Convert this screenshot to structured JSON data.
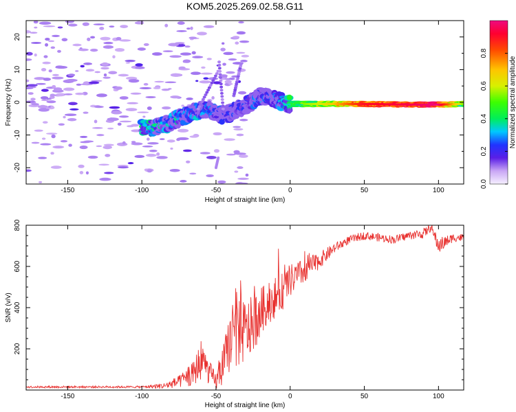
{
  "title": "KOM5.2025.269.02.58.G11",
  "chart_data": [
    {
      "type": "heatmap",
      "xlabel": "Height of straight line (km)",
      "ylabel": "Frequency (Hz)",
      "xlim": [
        -178,
        117
      ],
      "ylim": [
        -25,
        25
      ],
      "xticks": [
        -150,
        -100,
        -50,
        0,
        50,
        100
      ],
      "yticks": [
        -20,
        -10,
        0,
        10,
        20
      ],
      "colorbar": {
        "label": "Normalized spectral amplitude",
        "range": [
          0,
          1
        ],
        "ticks": [
          0.0,
          0.2,
          0.4,
          0.6,
          0.8
        ],
        "tick_labels": [
          "0.0",
          "0.2",
          "0.4",
          "0.6",
          "0.8"
        ]
      },
      "trace": {
        "description_points_x": [
          -95,
          -80,
          -65,
          -55,
          -45,
          -30,
          -20,
          -10,
          0,
          20,
          50,
          80,
          100,
          117
        ],
        "description_points_freq": [
          -8,
          -6,
          -3,
          -2,
          -4,
          -1,
          2,
          1,
          -0.5,
          -0.5,
          -0.5,
          -0.7,
          -0.7,
          -0.5
        ],
        "description_points_amp": [
          0.35,
          0.3,
          0.3,
          0.25,
          0.2,
          0.2,
          0.25,
          0.25,
          0.45,
          0.55,
          0.85,
          0.9,
          0.95,
          0.5
        ]
      }
    },
    {
      "type": "line",
      "xlabel": "Height of straight line (km)",
      "ylabel": "SNR (v/v)",
      "xlim": [
        -178,
        117
      ],
      "ylim": [
        0,
        800
      ],
      "xticks": [
        -150,
        -100,
        -50,
        0,
        50,
        100
      ],
      "yticks": [
        200,
        400,
        600,
        800
      ],
      "color": "#e8312f",
      "series_envelope": {
        "x": [
          -178,
          -150,
          -120,
          -100,
          -85,
          -75,
          -65,
          -60,
          -55,
          -50,
          -45,
          -40,
          -35,
          -30,
          -25,
          -20,
          -15,
          -10,
          -5,
          0,
          10,
          20,
          30,
          40,
          50,
          60,
          70,
          80,
          90,
          95,
          100,
          110,
          117
        ],
        "y": [
          15,
          15,
          15,
          15,
          20,
          40,
          80,
          150,
          90,
          40,
          120,
          250,
          300,
          280,
          320,
          380,
          420,
          450,
          480,
          530,
          580,
          630,
          690,
          730,
          750,
          740,
          730,
          750,
          760,
          790,
          700,
          740,
          740
        ],
        "noise": [
          5,
          5,
          5,
          5,
          15,
          30,
          60,
          100,
          60,
          40,
          100,
          150,
          200,
          150,
          140,
          120,
          100,
          100,
          90,
          80,
          60,
          40,
          25,
          20,
          20,
          20,
          20,
          20,
          25,
          20,
          40,
          20,
          20
        ]
      }
    }
  ]
}
